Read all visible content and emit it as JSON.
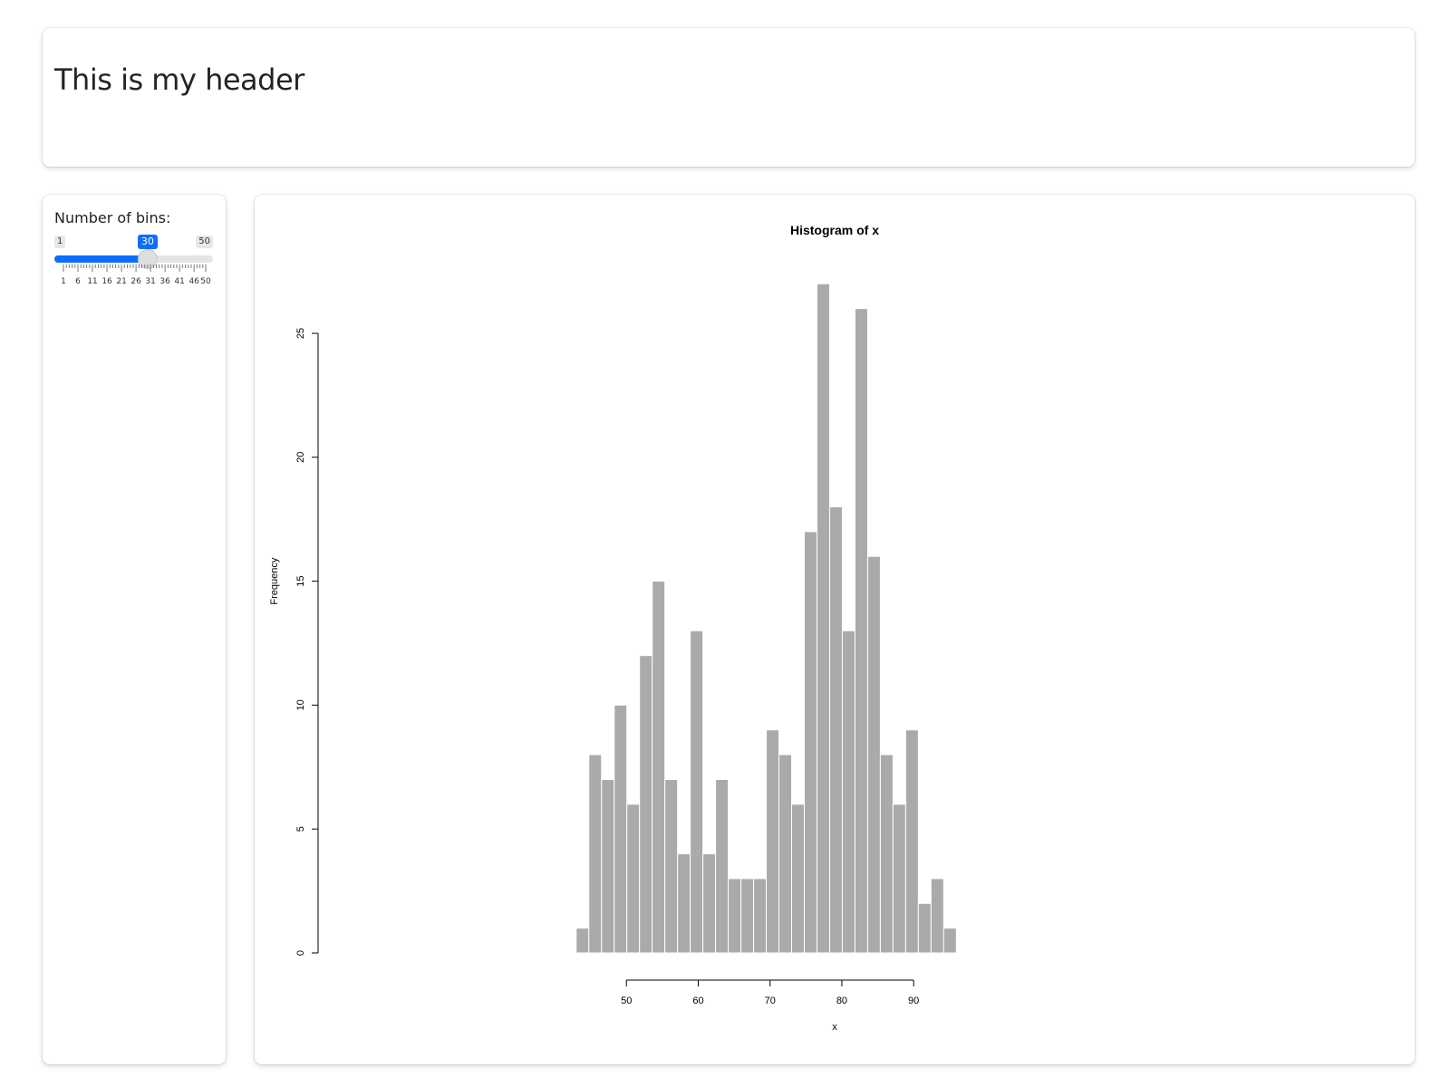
{
  "header": {
    "title": "This is my header"
  },
  "sidebar": {
    "slider": {
      "label": "Number of bins:",
      "min": 1,
      "max": 50,
      "value": 30,
      "min_label": "1",
      "max_label": "50",
      "value_label": "30",
      "tick_labels": [
        "1",
        "6",
        "11",
        "16",
        "21",
        "26",
        "31",
        "36",
        "41",
        "46",
        "50"
      ],
      "accent_color": "#0d6efd"
    }
  },
  "chart_data": {
    "type": "bar",
    "title": "Histogram of x",
    "xlabel": "x",
    "ylabel": "Frequency",
    "bin_start": 43,
    "bin_width": 1.765,
    "values": [
      1,
      8,
      7,
      10,
      6,
      12,
      15,
      7,
      4,
      13,
      4,
      7,
      3,
      3,
      3,
      9,
      8,
      6,
      17,
      27,
      18,
      13,
      26,
      16,
      8,
      6,
      9,
      2,
      3,
      1
    ],
    "xticks": [
      50,
      60,
      70,
      80,
      90
    ],
    "yticks": [
      0,
      5,
      10,
      15,
      20,
      25
    ],
    "xlim": [
      50,
      90
    ],
    "ylim": [
      0,
      25
    ],
    "bar_color": "#aaaaaa",
    "grid": false
  }
}
